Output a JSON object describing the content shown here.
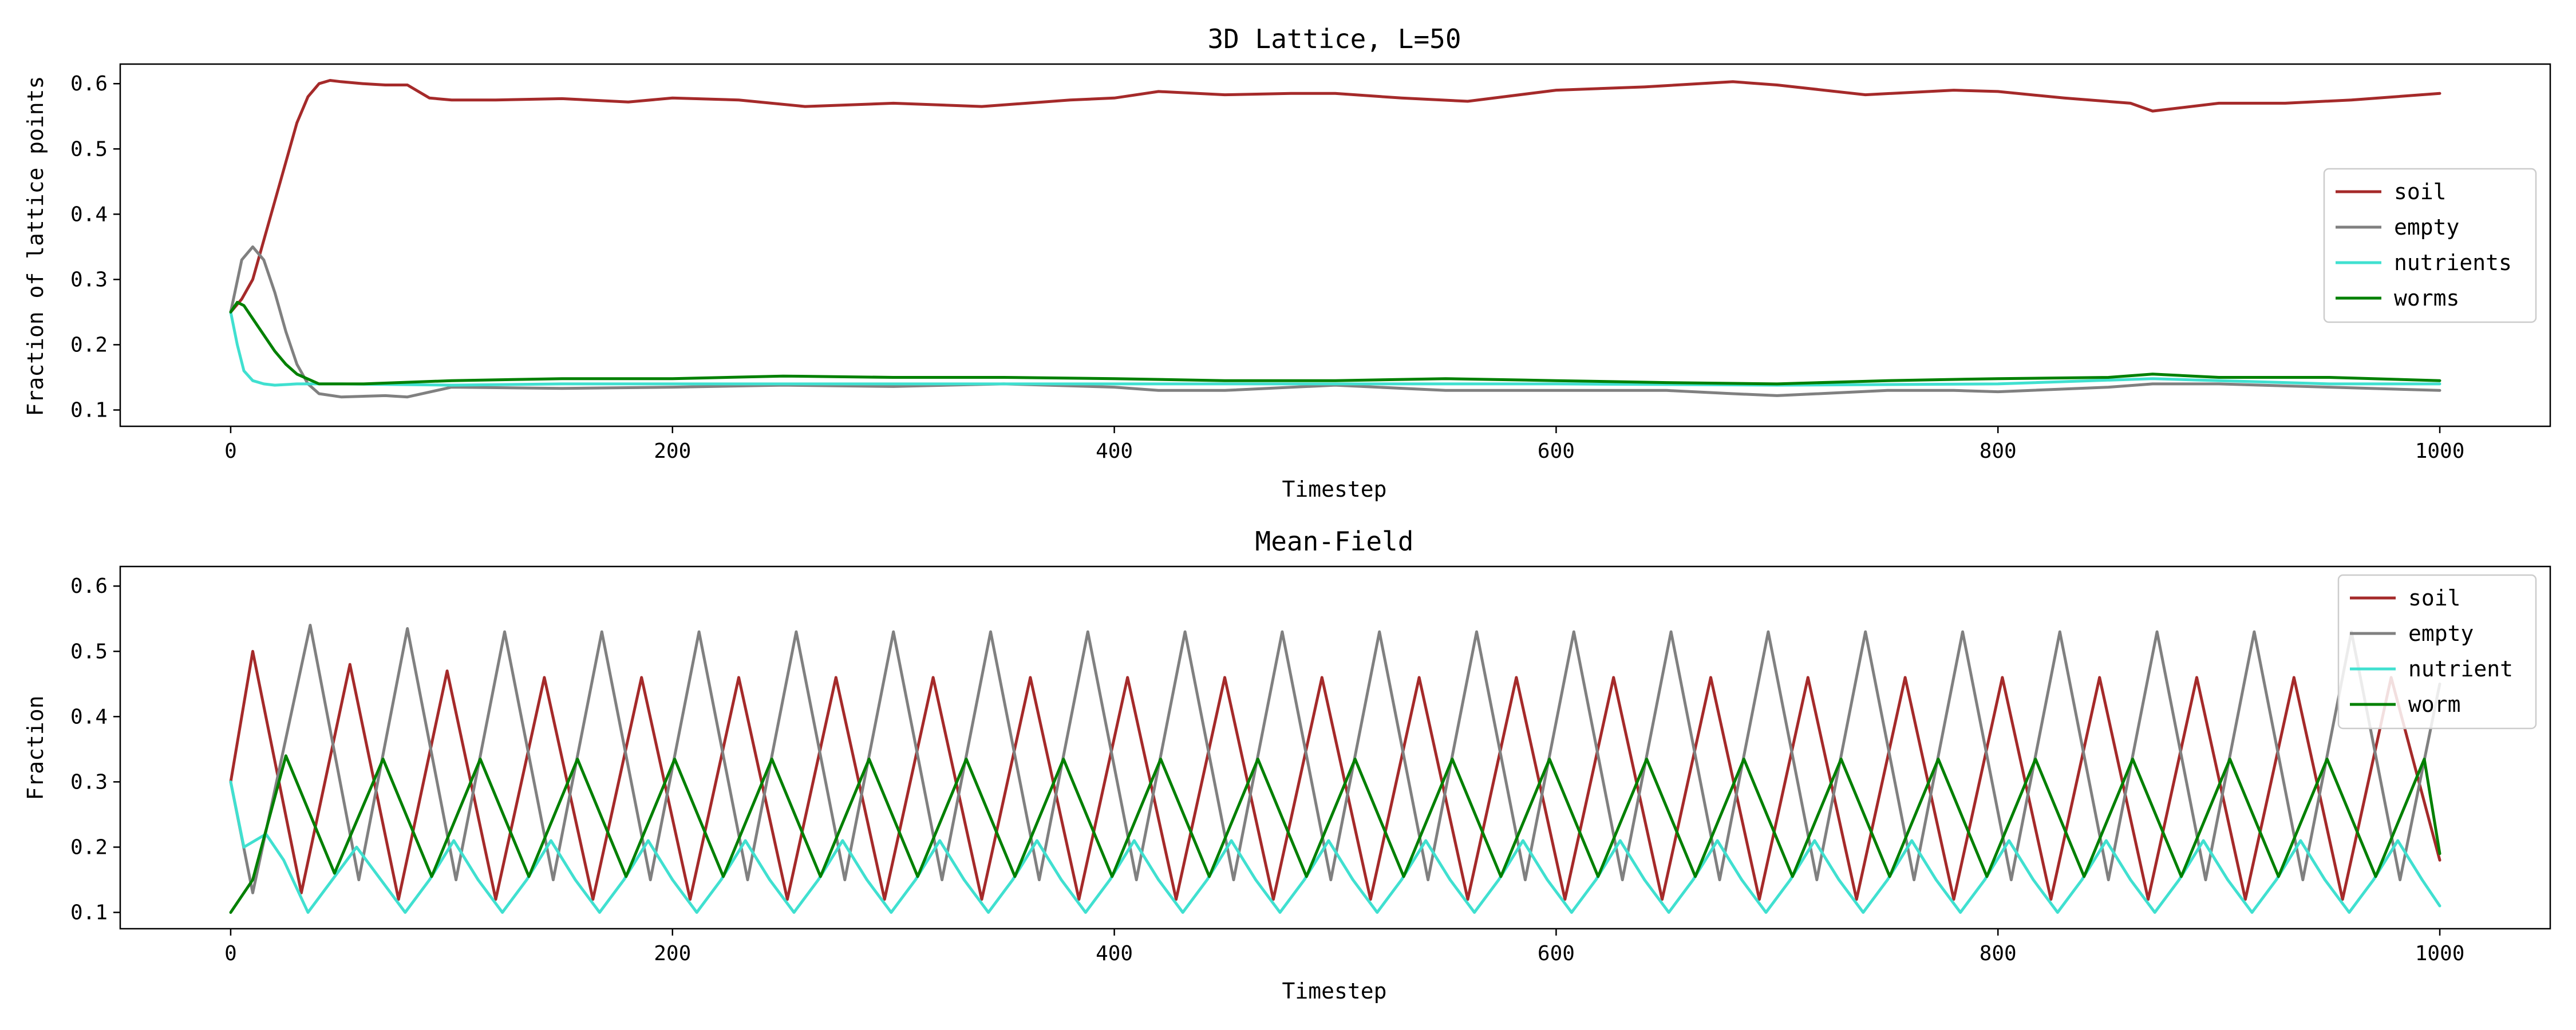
{
  "chart_data": [
    {
      "type": "line",
      "title": "3D Lattice, L=50",
      "xlabel": "Timestep",
      "ylabel": "Fraction of lattice points",
      "xlim": [
        -50,
        1050
      ],
      "ylim": [
        0.075,
        0.63
      ],
      "xticks": [
        0,
        200,
        400,
        600,
        800,
        1000
      ],
      "yticks": [
        0.1,
        0.2,
        0.3,
        0.4,
        0.5,
        0.6
      ],
      "legend_position": "center-right",
      "series": [
        {
          "name": "soil",
          "color": "#a52a2a",
          "x": [
            0,
            5,
            10,
            15,
            20,
            25,
            30,
            35,
            40,
            45,
            50,
            60,
            70,
            80,
            90,
            100,
            120,
            150,
            180,
            200,
            230,
            260,
            300,
            340,
            380,
            400,
            420,
            450,
            480,
            500,
            530,
            560,
            600,
            640,
            680,
            700,
            740,
            780,
            800,
            830,
            860,
            870,
            900,
            930,
            960,
            1000
          ],
          "y": [
            0.25,
            0.27,
            0.3,
            0.36,
            0.42,
            0.48,
            0.54,
            0.58,
            0.6,
            0.605,
            0.603,
            0.6,
            0.598,
            0.598,
            0.578,
            0.575,
            0.575,
            0.577,
            0.572,
            0.578,
            0.575,
            0.565,
            0.57,
            0.565,
            0.575,
            0.578,
            0.588,
            0.583,
            0.585,
            0.585,
            0.578,
            0.573,
            0.59,
            0.595,
            0.603,
            0.598,
            0.583,
            0.59,
            0.588,
            0.578,
            0.57,
            0.558,
            0.57,
            0.57,
            0.575,
            0.585
          ]
        },
        {
          "name": "empty",
          "color": "#808080",
          "x": [
            0,
            5,
            10,
            15,
            20,
            25,
            30,
            35,
            40,
            50,
            70,
            80,
            100,
            150,
            200,
            250,
            300,
            350,
            400,
            420,
            450,
            500,
            550,
            600,
            650,
            680,
            700,
            750,
            780,
            800,
            850,
            870,
            900,
            950,
            1000
          ],
          "y": [
            0.25,
            0.33,
            0.35,
            0.33,
            0.28,
            0.22,
            0.17,
            0.14,
            0.125,
            0.12,
            0.122,
            0.12,
            0.135,
            0.133,
            0.135,
            0.138,
            0.136,
            0.14,
            0.135,
            0.13,
            0.13,
            0.138,
            0.13,
            0.13,
            0.13,
            0.125,
            0.122,
            0.13,
            0.13,
            0.128,
            0.135,
            0.14,
            0.14,
            0.135,
            0.13
          ]
        },
        {
          "name": "nutrients",
          "color": "#40e0d0",
          "x": [
            0,
            3,
            6,
            10,
            15,
            20,
            30,
            50,
            100,
            150,
            200,
            300,
            400,
            500,
            600,
            700,
            800,
            870,
            900,
            950,
            1000
          ],
          "y": [
            0.25,
            0.2,
            0.16,
            0.145,
            0.14,
            0.138,
            0.14,
            0.14,
            0.138,
            0.14,
            0.14,
            0.14,
            0.14,
            0.14,
            0.14,
            0.138,
            0.14,
            0.148,
            0.145,
            0.14,
            0.14
          ]
        },
        {
          "name": "worms",
          "color": "#008000",
          "x": [
            0,
            3,
            6,
            10,
            15,
            20,
            25,
            30,
            40,
            60,
            100,
            150,
            200,
            250,
            300,
            350,
            400,
            450,
            500,
            550,
            600,
            650,
            700,
            750,
            800,
            850,
            870,
            900,
            950,
            1000
          ],
          "y": [
            0.25,
            0.265,
            0.26,
            0.24,
            0.215,
            0.19,
            0.17,
            0.155,
            0.14,
            0.14,
            0.145,
            0.148,
            0.148,
            0.152,
            0.15,
            0.15,
            0.148,
            0.145,
            0.145,
            0.148,
            0.145,
            0.142,
            0.14,
            0.145,
            0.148,
            0.15,
            0.155,
            0.15,
            0.15,
            0.145
          ]
        }
      ]
    },
    {
      "type": "line",
      "title": "Mean-Field",
      "xlabel": "Timestep",
      "ylabel": "Fraction",
      "xlim": [
        -50,
        1050
      ],
      "ylim": [
        0.075,
        0.63
      ],
      "xticks": [
        0,
        200,
        400,
        600,
        800,
        1000
      ],
      "yticks": [
        0.1,
        0.2,
        0.3,
        0.4,
        0.5,
        0.6
      ],
      "legend_position": "upper-right",
      "oscillation_period": 44,
      "series": [
        {
          "name": "soil",
          "color": "#a52a2a",
          "x": [
            0,
            10,
            32,
            54,
            76,
            98,
            120,
            142,
            164,
            186,
            208,
            230,
            252,
            274,
            296,
            318,
            340,
            362,
            384,
            406,
            428,
            450,
            472,
            494,
            516,
            538,
            560,
            582,
            604,
            626,
            648,
            670,
            692,
            714,
            736,
            758,
            780,
            802,
            824,
            846,
            868,
            890,
            912,
            934,
            956,
            978,
            1000
          ],
          "y": [
            0.3,
            0.5,
            0.13,
            0.48,
            0.12,
            0.47,
            0.12,
            0.46,
            0.12,
            0.46,
            0.12,
            0.46,
            0.12,
            0.46,
            0.12,
            0.46,
            0.12,
            0.46,
            0.12,
            0.46,
            0.12,
            0.46,
            0.12,
            0.46,
            0.12,
            0.46,
            0.12,
            0.46,
            0.12,
            0.46,
            0.12,
            0.46,
            0.12,
            0.46,
            0.12,
            0.46,
            0.12,
            0.46,
            0.12,
            0.46,
            0.12,
            0.46,
            0.12,
            0.46,
            0.12,
            0.46,
            0.18
          ]
        },
        {
          "name": "empty",
          "color": "#808080",
          "x": [
            0,
            10,
            36,
            58,
            80,
            102,
            124,
            146,
            168,
            190,
            212,
            234,
            256,
            278,
            300,
            322,
            344,
            366,
            388,
            410,
            432,
            454,
            476,
            498,
            520,
            542,
            564,
            586,
            608,
            630,
            652,
            674,
            696,
            718,
            740,
            762,
            784,
            806,
            828,
            850,
            872,
            894,
            916,
            938,
            960,
            982,
            1000
          ],
          "y": [
            0.3,
            0.13,
            0.54,
            0.15,
            0.535,
            0.15,
            0.53,
            0.15,
            0.53,
            0.15,
            0.53,
            0.15,
            0.53,
            0.15,
            0.53,
            0.15,
            0.53,
            0.15,
            0.53,
            0.15,
            0.53,
            0.15,
            0.53,
            0.15,
            0.53,
            0.15,
            0.53,
            0.15,
            0.53,
            0.15,
            0.53,
            0.15,
            0.53,
            0.15,
            0.53,
            0.15,
            0.53,
            0.15,
            0.53,
            0.15,
            0.53,
            0.15,
            0.53,
            0.15,
            0.53,
            0.15,
            0.45
          ]
        },
        {
          "name": "nutrient",
          "color": "#40e0d0",
          "x": [
            0,
            6,
            16,
            24,
            35,
            46,
            57,
            68,
            79,
            90,
            101,
            112,
            123,
            134,
            145,
            156,
            167,
            178,
            189,
            200,
            211,
            222,
            233,
            244,
            255,
            266,
            277,
            288,
            299,
            310,
            321,
            332,
            343,
            354,
            365,
            376,
            387,
            398,
            409,
            420,
            431,
            442,
            453,
            464,
            475,
            486,
            497,
            508,
            519,
            530,
            541,
            552,
            563,
            574,
            585,
            596,
            607,
            618,
            629,
            640,
            651,
            662,
            673,
            684,
            695,
            706,
            717,
            728,
            739,
            750,
            761,
            772,
            783,
            794,
            805,
            816,
            827,
            838,
            849,
            860,
            871,
            882,
            893,
            904,
            915,
            926,
            937,
            948,
            959,
            970,
            981,
            992,
            1000
          ],
          "y": [
            0.3,
            0.2,
            0.22,
            0.18,
            0.1,
            0.15,
            0.2,
            0.15,
            0.1,
            0.15,
            0.21,
            0.15,
            0.1,
            0.15,
            0.21,
            0.15,
            0.1,
            0.15,
            0.21,
            0.15,
            0.1,
            0.15,
            0.21,
            0.15,
            0.1,
            0.15,
            0.21,
            0.15,
            0.1,
            0.15,
            0.21,
            0.15,
            0.1,
            0.15,
            0.21,
            0.15,
            0.1,
            0.15,
            0.21,
            0.15,
            0.1,
            0.15,
            0.21,
            0.15,
            0.1,
            0.15,
            0.21,
            0.15,
            0.1,
            0.15,
            0.21,
            0.15,
            0.1,
            0.15,
            0.21,
            0.15,
            0.1,
            0.15,
            0.21,
            0.15,
            0.1,
            0.15,
            0.21,
            0.15,
            0.1,
            0.15,
            0.21,
            0.15,
            0.1,
            0.15,
            0.21,
            0.15,
            0.1,
            0.15,
            0.21,
            0.15,
            0.1,
            0.15,
            0.21,
            0.15,
            0.1,
            0.15,
            0.21,
            0.15,
            0.1,
            0.15,
            0.21,
            0.15,
            0.1,
            0.15,
            0.21,
            0.15,
            0.11
          ]
        },
        {
          "name": "worm",
          "color": "#008000",
          "x": [
            0,
            10,
            25,
            47,
            69,
            91,
            113,
            135,
            157,
            179,
            201,
            223,
            245,
            267,
            289,
            311,
            333,
            355,
            377,
            399,
            421,
            443,
            465,
            487,
            509,
            531,
            553,
            575,
            597,
            619,
            641,
            663,
            685,
            707,
            729,
            751,
            773,
            795,
            817,
            839,
            861,
            883,
            905,
            927,
            949,
            971,
            993,
            1000
          ],
          "y": [
            0.1,
            0.15,
            0.34,
            0.16,
            0.335,
            0.155,
            0.335,
            0.155,
            0.335,
            0.155,
            0.335,
            0.155,
            0.335,
            0.155,
            0.335,
            0.155,
            0.335,
            0.155,
            0.335,
            0.155,
            0.335,
            0.155,
            0.335,
            0.155,
            0.335,
            0.155,
            0.335,
            0.155,
            0.335,
            0.155,
            0.335,
            0.155,
            0.335,
            0.155,
            0.335,
            0.155,
            0.335,
            0.155,
            0.335,
            0.155,
            0.335,
            0.155,
            0.335,
            0.155,
            0.335,
            0.155,
            0.335,
            0.19
          ]
        }
      ]
    }
  ]
}
